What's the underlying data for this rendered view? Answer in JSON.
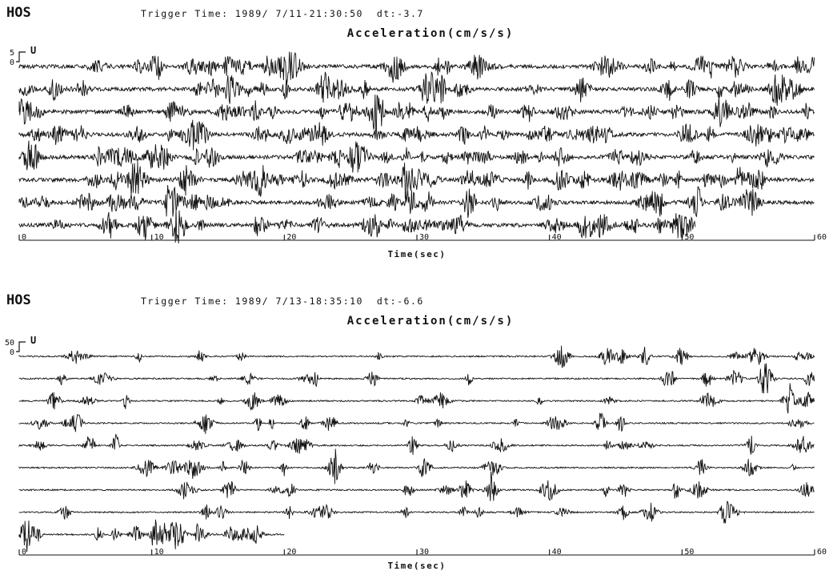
{
  "chart_data": [
    {
      "type": "line",
      "station": "HOS",
      "trigger": "Trigger Time: 1989/ 7/11-21:30:50  dt:-3.7",
      "title": "Acceleration(cm/s/s)",
      "component": "U",
      "scale_label": "5",
      "zero_label": "0",
      "xlabel": "Time(sec)",
      "xlim": [
        0,
        60
      ],
      "xticks": [
        "0",
        "10",
        "20",
        "30",
        "40",
        "50",
        "60"
      ],
      "trace_count": 8,
      "last_trace_end_sec": 51,
      "amplitude": "high"
    },
    {
      "type": "line",
      "station": "HOS",
      "trigger": "Trigger Time: 1989/ 7/13-18:35:10  dt:-6.6",
      "title": "Acceleration(cm/s/s)",
      "component": "U",
      "scale_label": "50",
      "zero_label": "0",
      "xlabel": "Time(sec)",
      "xlim": [
        0,
        60
      ],
      "xticks": [
        "0",
        "10",
        "20",
        "30",
        "40",
        "50",
        "60"
      ],
      "trace_count": 9,
      "last_trace_end_sec": 20,
      "amplitude": "low"
    }
  ]
}
